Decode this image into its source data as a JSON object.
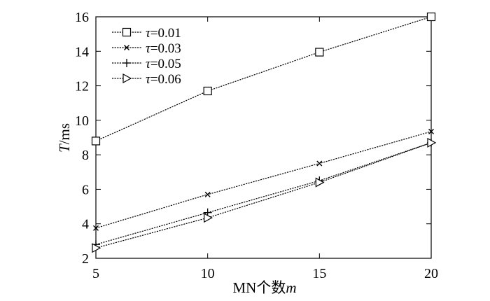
{
  "chart_data": {
    "type": "line",
    "title": "",
    "xlabel": "MN个数m",
    "ylabel": "T/ms",
    "x": [
      5,
      10,
      15,
      20
    ],
    "xlim": [
      5,
      20
    ],
    "ylim": [
      2,
      16
    ],
    "xticks": [
      5,
      10,
      15,
      20
    ],
    "yticks": [
      2,
      4,
      6,
      8,
      10,
      12,
      14,
      16
    ],
    "grid": false,
    "legend_position": "top-left",
    "series": [
      {
        "name": "τ=0.01",
        "marker": "square",
        "values": [
          8.8,
          11.7,
          13.95,
          16.0
        ]
      },
      {
        "name": "τ=0.03",
        "marker": "x",
        "values": [
          3.75,
          5.7,
          7.5,
          9.35
        ]
      },
      {
        "name": "τ=0.05",
        "marker": "plus",
        "values": [
          2.8,
          4.65,
          6.5,
          8.7
        ]
      },
      {
        "name": "τ=0.06",
        "marker": "triangle-right",
        "values": [
          2.6,
          4.35,
          6.4,
          8.7
        ]
      }
    ]
  }
}
